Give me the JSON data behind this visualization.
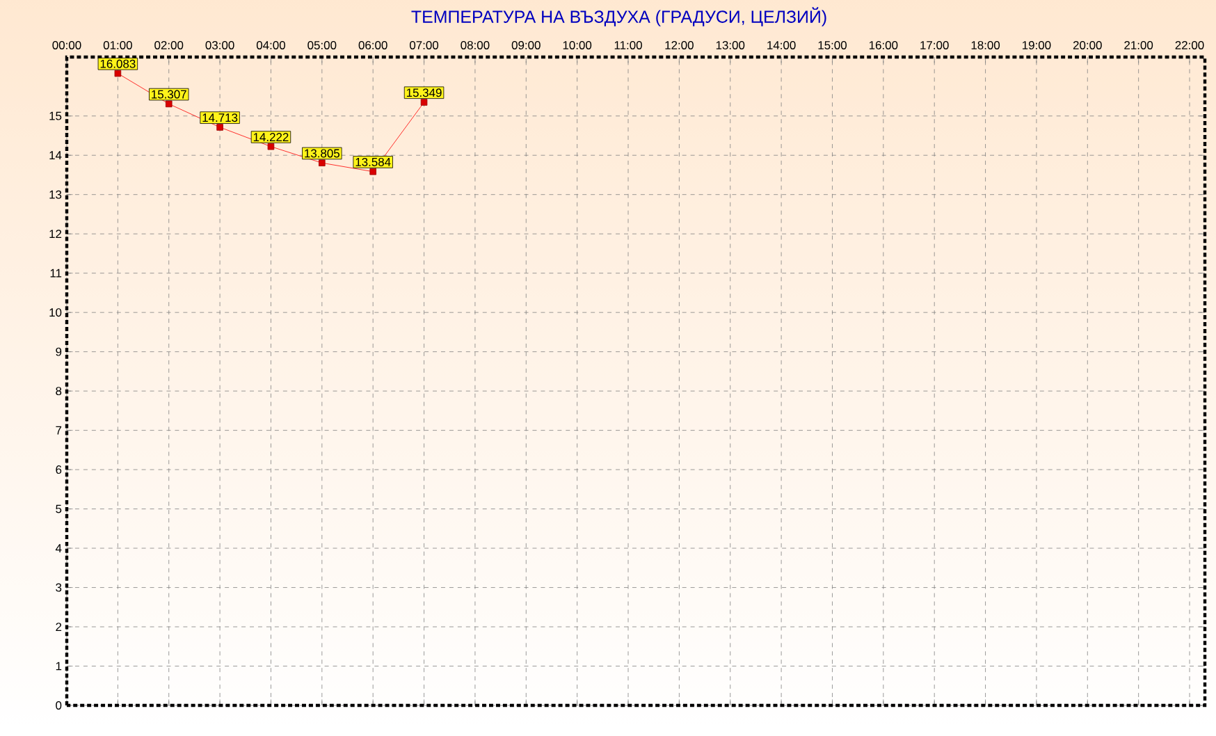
{
  "chart_data": {
    "type": "line",
    "title": "ТЕМПЕРАТУРА НА ВЪЗДУХА  (ГРАДУСИ, ЦЕЛЗИЙ)",
    "x": [
      1,
      2,
      3,
      4,
      5,
      6,
      7
    ],
    "series": [
      {
        "color": "#ff0000",
        "values": [
          16.083,
          15.307,
          14.713,
          14.222,
          13.805,
          13.584,
          15.349
        ]
      }
    ],
    "xlim": [
      0,
      22.3
    ],
    "ylim": [
      0,
      16.5
    ],
    "xticks": [
      {
        "value": 0,
        "label": "00:00"
      },
      {
        "value": 1,
        "label": "01:00"
      },
      {
        "value": 2,
        "label": "02:00"
      },
      {
        "value": 3,
        "label": "03:00"
      },
      {
        "value": 4,
        "label": "04:00"
      },
      {
        "value": 5,
        "label": "05:00"
      },
      {
        "value": 6,
        "label": "06:00"
      },
      {
        "value": 7,
        "label": "07:00"
      },
      {
        "value": 8,
        "label": "08:00"
      },
      {
        "value": 9,
        "label": "09:00"
      },
      {
        "value": 10,
        "label": "10:00"
      },
      {
        "value": 11,
        "label": "11:00"
      },
      {
        "value": 12,
        "label": "12:00"
      },
      {
        "value": 13,
        "label": "13:00"
      },
      {
        "value": 14,
        "label": "14:00"
      },
      {
        "value": 15,
        "label": "15:00"
      },
      {
        "value": 16,
        "label": "16:00"
      },
      {
        "value": 17,
        "label": "17:00"
      },
      {
        "value": 18,
        "label": "18:00"
      },
      {
        "value": 19,
        "label": "19:00"
      },
      {
        "value": 20,
        "label": "20:00"
      },
      {
        "value": 21,
        "label": "21:00"
      },
      {
        "value": 22,
        "label": "22:00"
      }
    ],
    "yticks": [
      0,
      1,
      2,
      3,
      4,
      5,
      6,
      7,
      8,
      9,
      10,
      11,
      12,
      13,
      14,
      15
    ],
    "grid": true,
    "marker": "square",
    "line_style": "solid",
    "data_labels": true
  }
}
